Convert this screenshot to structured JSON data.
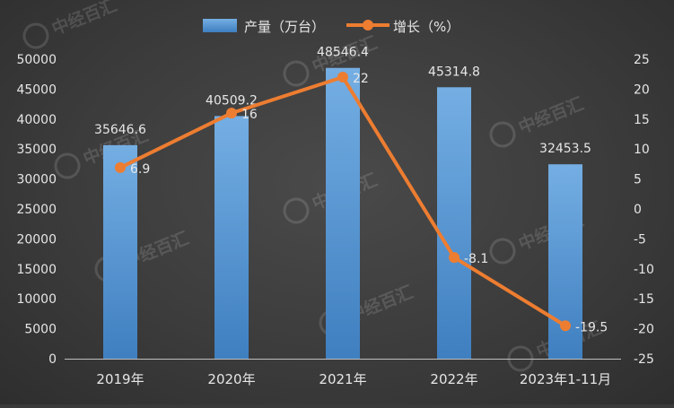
{
  "chart_data": {
    "type": "bar+line",
    "categories": [
      "2019年",
      "2020年",
      "2021年",
      "2022年",
      "2023年1-11月"
    ],
    "series": [
      {
        "name": "产量（万台）",
        "type": "bar",
        "axis": "left",
        "values": [
          35646.6,
          40509.2,
          48546.4,
          45314.8,
          32453.5
        ],
        "labels": [
          "35646.6",
          "40509.2",
          "48546.4",
          "45314.8",
          "32453.5"
        ],
        "color": "#5b9bd5"
      },
      {
        "name": "增长（%）",
        "type": "line",
        "axis": "right",
        "values": [
          6.9,
          16,
          22,
          -8.1,
          -19.5
        ],
        "labels": [
          "6.9",
          "16",
          "22",
          "-8.1",
          "-19.5"
        ],
        "color": "#ed7d31"
      }
    ],
    "y_left": {
      "min": 0,
      "max": 50000,
      "step": 5000
    },
    "y_right": {
      "min": -25,
      "max": 25,
      "step": 5
    },
    "grid": false,
    "legend": "top-center"
  },
  "watermark": {
    "text": "中经百汇",
    "icon": "zjbh-logo-icon"
  }
}
